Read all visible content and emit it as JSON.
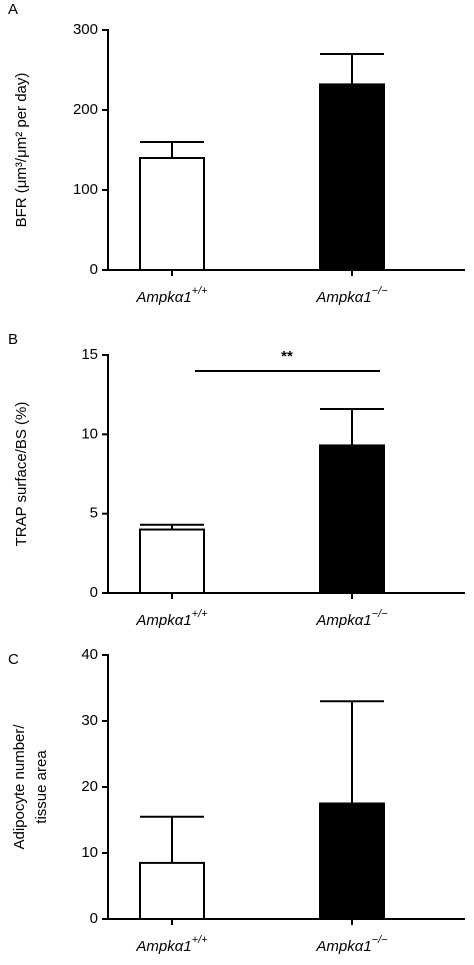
{
  "chart_data": [
    {
      "type": "bar",
      "panel": "A",
      "ylabel": "BFR (μm³/μm² per day)",
      "categories": [
        "Ampkα1+/+",
        "Ampkα1−/−"
      ],
      "values": [
        140,
        232
      ],
      "errors": [
        20,
        38
      ],
      "colors": [
        "#ffffff",
        "#000000"
      ],
      "ylim": [
        0,
        300
      ],
      "yticks": [
        0,
        100,
        200,
        300
      ]
    },
    {
      "type": "bar",
      "panel": "B",
      "ylabel": "TRAP surface/BS (%)",
      "categories": [
        "Ampkα1+/+",
        "Ampkα1−/−"
      ],
      "values": [
        4.0,
        9.3
      ],
      "errors": [
        0.3,
        2.3
      ],
      "colors": [
        "#ffffff",
        "#000000"
      ],
      "ylim": [
        0,
        15
      ],
      "yticks": [
        0,
        5,
        10,
        15
      ],
      "annotation": "**"
    },
    {
      "type": "bar",
      "panel": "C",
      "ylabel": [
        "Adipocyte number/",
        "tissue area"
      ],
      "categories": [
        "Ampkα1+/+",
        "Ampkα1−/−"
      ],
      "values": [
        8.5,
        17.5
      ],
      "errors": [
        7,
        15.5
      ],
      "colors": [
        "#ffffff",
        "#000000"
      ],
      "ylim": [
        0,
        40
      ],
      "yticks": [
        0,
        10,
        20,
        30,
        40
      ]
    }
  ]
}
